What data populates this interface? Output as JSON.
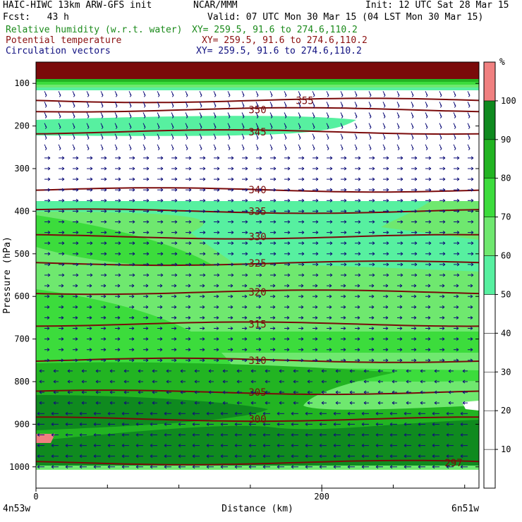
{
  "header": {
    "title": "HAIC-HIWC 13km ARW-GFS init",
    "org": "NCAR/MMM",
    "init": "Init: 12 UTC Sat 28 Mar 15",
    "fcst": "Fcst:   43 h",
    "valid": "Valid: 07 UTC Mon 30 Mar 15 (04 LST Mon 30 Mar 15)",
    "field1": "Relative humidity (w.r.t. water)",
    "field1_xy": "XY= 259.5, 91.6 to 274.6,110.2",
    "field2": "Potential temperature",
    "field2_xy": "XY= 259.5, 91.6 to 274.6,110.2",
    "field3": "Circulation vectors",
    "field3_xy": "XY= 259.5, 91.6 to 274.6,110.2"
  },
  "colors": {
    "rh_bands": [
      "#ffffff",
      "#ffffff",
      "#ffffff",
      "#ffffff",
      "#ffffff",
      "#57f0a0",
      "#6fe86f",
      "#3cdc3c",
      "#22b422",
      "#0f8a1f",
      "#f08080"
    ],
    "theta_contour": "#7a0a0a",
    "vectors": "#10107a"
  },
  "chart_data": {
    "type": "heatmap",
    "xlabel": "Distance (km)",
    "ylabel": "Pressure (hPa)",
    "xlim": [
      0,
      310
    ],
    "x_ticks": [
      0,
      200
    ],
    "ylim": [
      1050,
      50
    ],
    "y_ticks": [
      100,
      200,
      300,
      400,
      500,
      600,
      700,
      800,
      900,
      1000
    ],
    "x_endpoints": {
      "left": "4n53w",
      "right": "6n51w"
    },
    "colorbar": {
      "unit": "%",
      "levels": [
        10,
        20,
        30,
        40,
        50,
        60,
        70,
        80,
        90,
        100
      ]
    },
    "theta_contours": [
      {
        "label": "355",
        "p": 140
      },
      {
        "label": "350",
        "p": 162
      },
      {
        "label": "345",
        "p": 214
      },
      {
        "label": "340",
        "p": 350
      },
      {
        "label": "335",
        "p": 400
      },
      {
        "label": "330",
        "p": 460
      },
      {
        "label": "325",
        "p": 522
      },
      {
        "label": "320",
        "p": 590
      },
      {
        "label": "315",
        "p": 665
      },
      {
        "label": "310",
        "p": 750
      },
      {
        "label": "305",
        "p": 825
      },
      {
        "label": "300",
        "p": 888
      },
      {
        "label": "297",
        "p": 990
      }
    ]
  }
}
